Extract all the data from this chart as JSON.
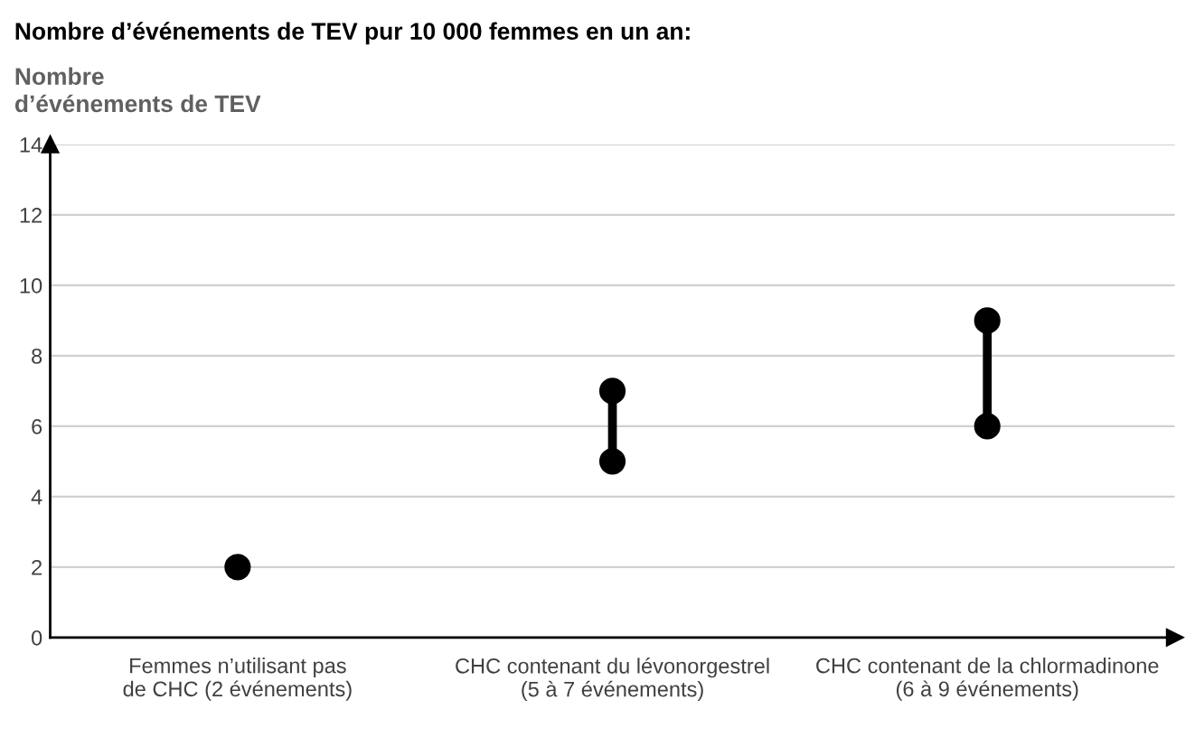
{
  "chart_data": {
    "type": "scatter",
    "title": "Nombre d’événements de TEV pur 10 000 femmes en un an:",
    "ylabel": "Nombre\nd’événements de TEV",
    "categories": [
      "Femmes n’utilisant pas\nde CHC (2 événements)",
      "CHC contenant du lévonorgestrel\n(5 à 7 événements)",
      "CHC contenant de la chlormadinone\n(6 à 9 événements)"
    ],
    "series": [
      {
        "color": "#000000",
        "values": [
          2,
          5,
          6
        ]
      },
      {
        "color": "#000000",
        "values": [
          null,
          7,
          9
        ]
      }
    ],
    "ylim": [
      0,
      14
    ],
    "yticks": [
      0,
      2,
      4,
      6,
      8,
      10,
      12,
      14
    ],
    "grid": "y",
    "marker": "circle",
    "legend": false
  }
}
